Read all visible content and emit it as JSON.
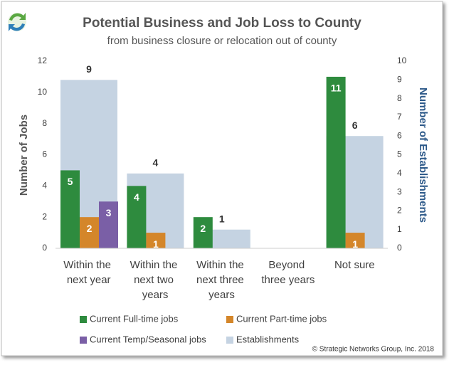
{
  "chart_data": {
    "type": "bar",
    "title": "Potential Business and Job Loss to County",
    "subtitle": "from business closure or relocation out of county",
    "y_label": "Number of Jobs",
    "y2_label": "Number of Establishments",
    "credit": "© Strategic Networks Group, Inc. 2018",
    "categories": [
      "Within the next year",
      "Within the next two years",
      "Within the next three years",
      "Beyond three years",
      "Not sure"
    ],
    "series": [
      {
        "name": "Current Full-time jobs",
        "color": "#2e8b3e",
        "values": [
          5,
          4,
          2,
          null,
          11
        ]
      },
      {
        "name": "Current Part-time jobs",
        "color": "#d4862a",
        "values": [
          2,
          1,
          null,
          null,
          1
        ]
      },
      {
        "name": "Current Temp/Seasonal jobs",
        "color": "#7a5fa6",
        "values": [
          3,
          null,
          null,
          null,
          null
        ]
      },
      {
        "name": "Establishments",
        "color": "#c5d3e2",
        "axis": "y2",
        "values": [
          9,
          4,
          1,
          null,
          6
        ]
      }
    ],
    "ylim": [
      0,
      12
    ],
    "yticks": [
      0,
      2,
      4,
      6,
      8,
      10,
      12
    ],
    "y2lim": [
      0,
      10
    ],
    "y2ticks": [
      0,
      1,
      2,
      3,
      4,
      5,
      6,
      7,
      8,
      9,
      10
    ],
    "grid": false
  }
}
